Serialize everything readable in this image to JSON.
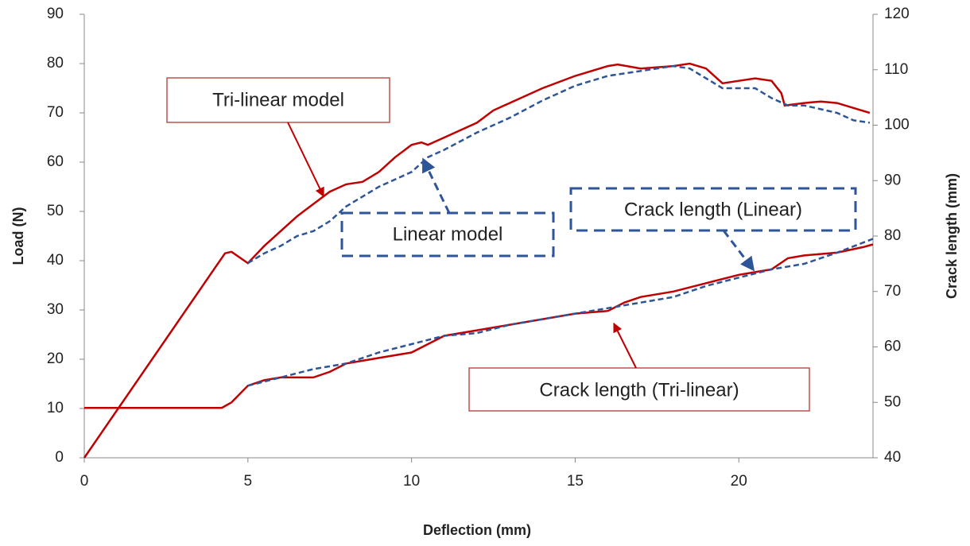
{
  "chart_data": {
    "type": "line",
    "xlabel": "Deflection (mm)",
    "ylabel": "Load (N)",
    "y2label": "Crack length (mm)",
    "xlim": [
      0,
      24.1
    ],
    "xticks": [
      0,
      5,
      10,
      15,
      20
    ],
    "ylim": [
      0,
      90
    ],
    "yticks": [
      0,
      10,
      20,
      30,
      40,
      50,
      60,
      70,
      80,
      90
    ],
    "y2lim": [
      40,
      120
    ],
    "y2ticks": [
      40,
      50,
      60,
      70,
      80,
      90,
      100,
      110,
      120
    ],
    "grid": false,
    "annotations": [
      "Tri-linear model",
      "Linear model",
      "Crack length (Linear)",
      "Crack length (Tri-linear)"
    ],
    "series": [
      {
        "color": "#c00000",
        "dash": false,
        "x": [
          0,
          4.3,
          4.5,
          5,
          5.5,
          6.5,
          7.5,
          8,
          8.5,
          9,
          9.5,
          10,
          10.3,
          10.5,
          11,
          12,
          12.5,
          13,
          14,
          15,
          16,
          16.3,
          17,
          18,
          18.5,
          19,
          19.5,
          20,
          20.5,
          21,
          21.3,
          21.4,
          22,
          22.5,
          23,
          23.5,
          24
        ],
        "values": [
          0,
          41.5,
          41.8,
          39.5,
          43,
          49,
          54,
          55.5,
          56,
          58,
          61,
          63.5,
          64,
          63.5,
          65,
          68,
          70.5,
          72,
          75,
          77.5,
          79.5,
          79.8,
          79,
          79.5,
          80,
          79,
          76,
          76.5,
          77,
          76.5,
          74,
          71.5,
          72,
          72.3,
          72,
          71,
          70
        ]
      },
      {
        "color": "#2e5597",
        "dash": true,
        "x": [
          5,
          5.5,
          6,
          6.5,
          7,
          7.5,
          8,
          9,
          10,
          10.5,
          11,
          12,
          13,
          14,
          15,
          16,
          17,
          18,
          18.5,
          19,
          19.5,
          20.5,
          21,
          21.5,
          22,
          23,
          23.5,
          24
        ],
        "values": [
          39.5,
          41.5,
          43,
          45,
          46,
          48,
          51,
          55,
          58,
          61,
          62.5,
          66,
          69,
          72.5,
          75.5,
          77.5,
          78.5,
          79.5,
          79,
          77,
          75,
          75,
          73,
          71.5,
          71.5,
          70,
          68.5,
          68
        ]
      },
      {
        "color": "#c00000",
        "dash": false,
        "axis": "y2",
        "x": [
          0,
          4.2,
          4.5,
          5,
          5.5,
          6,
          7,
          7.5,
          8,
          8.5,
          9,
          10,
          10.5,
          11,
          12,
          12.5,
          13,
          14,
          15,
          16,
          16.5,
          17,
          18,
          19,
          20,
          21,
          21.5,
          22,
          23,
          23.8,
          24.1
        ],
        "values": [
          49,
          49,
          50,
          53,
          54,
          54.5,
          54.5,
          55.5,
          57,
          57.5,
          58,
          59,
          60.5,
          62,
          63,
          63.5,
          64,
          65,
          66,
          66.5,
          68,
          69,
          70,
          71.5,
          73,
          74,
          76,
          76.5,
          77,
          78,
          78.5
        ]
      },
      {
        "color": "#2e5597",
        "dash": true,
        "axis": "y2",
        "x": [
          5,
          6,
          7,
          8,
          9,
          10,
          11,
          12,
          13,
          14,
          15,
          16,
          17,
          18,
          19,
          20,
          21,
          22,
          23,
          24.1
        ],
        "values": [
          53,
          54.5,
          56,
          57,
          59,
          60.5,
          62,
          62.5,
          64,
          65,
          66,
          67,
          68,
          69,
          71,
          72.5,
          74,
          75,
          77,
          79.5
        ]
      }
    ]
  }
}
